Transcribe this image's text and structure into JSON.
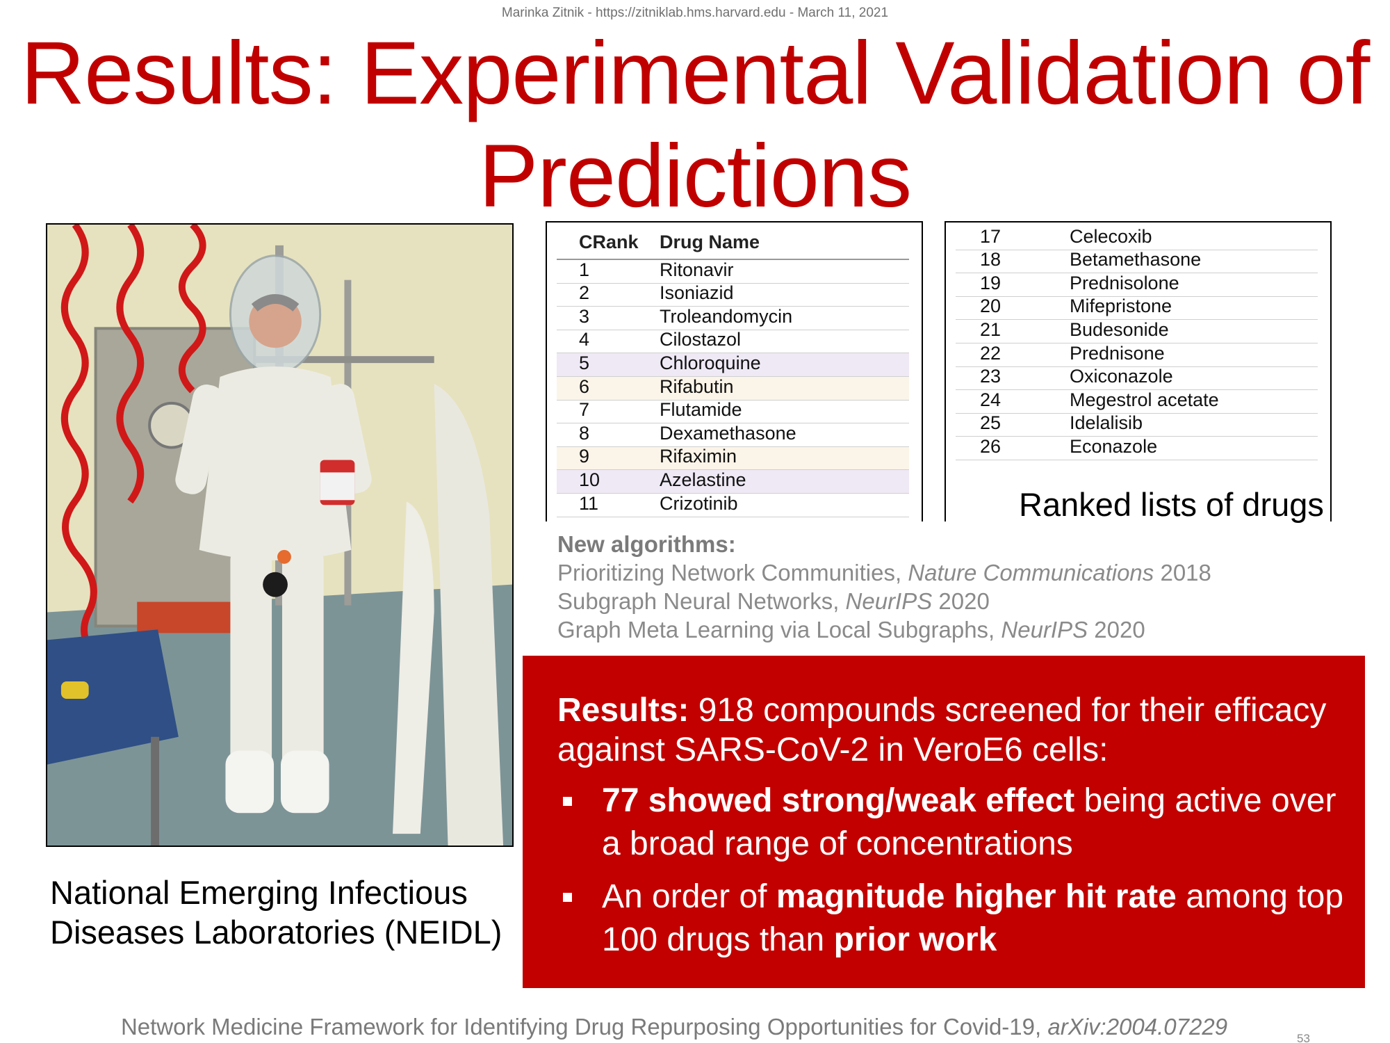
{
  "header": {
    "credit": "Marinka Zitnik - https://zitniklab.hms.harvard.edu - March 11, 2021"
  },
  "title": {
    "line1": "Results: Experimental Validation of",
    "line2": "Predictions"
  },
  "photo": {
    "caption_line1": "National Emerging Infectious",
    "caption_line2": "Diseases Laboratories (NEIDL)"
  },
  "table_left": {
    "headers": {
      "rank": "CRank",
      "name": "Drug Name"
    },
    "rows": [
      {
        "rank": "1",
        "name": "Ritonavir"
      },
      {
        "rank": "2",
        "name": "Isoniazid"
      },
      {
        "rank": "3",
        "name": "Troleandomycin"
      },
      {
        "rank": "4",
        "name": "Cilostazol"
      },
      {
        "rank": "5",
        "name": "Chloroquine"
      },
      {
        "rank": "6",
        "name": "Rifabutin"
      },
      {
        "rank": "7",
        "name": "Flutamide"
      },
      {
        "rank": "8",
        "name": "Dexamethasone"
      },
      {
        "rank": "9",
        "name": "Rifaximin"
      },
      {
        "rank": "10",
        "name": "Azelastine"
      },
      {
        "rank": "11",
        "name": "Crizotinib"
      }
    ]
  },
  "table_right": {
    "rows": [
      {
        "rank": "17",
        "name": "Celecoxib"
      },
      {
        "rank": "18",
        "name": "Betamethasone"
      },
      {
        "rank": "19",
        "name": "Prednisolone"
      },
      {
        "rank": "20",
        "name": "Mifepristone"
      },
      {
        "rank": "21",
        "name": "Budesonide"
      },
      {
        "rank": "22",
        "name": "Prednisone"
      },
      {
        "rank": "23",
        "name": "Oxiconazole"
      },
      {
        "rank": "24",
        "name": "Megestrol acetate"
      },
      {
        "rank": "25",
        "name": "Idelalisib"
      },
      {
        "rank": "26",
        "name": "Econazole"
      }
    ]
  },
  "ranked_label": "Ranked lists of drugs",
  "algorithms": {
    "heading": "New algorithms:",
    "items": [
      {
        "text": "Prioritizing Network Communities, ",
        "venue": "Nature Communications",
        "year": " 2018"
      },
      {
        "text": "Subgraph Neural Networks, ",
        "venue": "NeurIPS",
        "year": " 2020"
      },
      {
        "text": "Graph Meta Learning via Local Subgraphs, ",
        "venue": "NeurIPS",
        "year": " 2020"
      }
    ]
  },
  "results": {
    "label": "Results:",
    "intro": " 918 compounds screened for their efficacy against SARS-CoV-2 in VeroE6 cells:",
    "bullet1_bold": "77 showed strong/weak effect",
    "bullet1_rest": " being active over a broad range of concentrations",
    "bullet2_a": "An order of ",
    "bullet2_bold1": "magnitude higher hit rate",
    "bullet2_b": " among top 100 drugs than ",
    "bullet2_bold2": "prior work"
  },
  "footer": {
    "citation": "Network Medicine Framework for Identifying Drug Repurposing Opportunities for Covid-19, ",
    "arxiv": "arXiv:2004.07229",
    "page_number": "53"
  },
  "colors": {
    "title_red": "#c00000",
    "results_bg": "#c20000",
    "muted_gray": "#8a8a8a"
  }
}
